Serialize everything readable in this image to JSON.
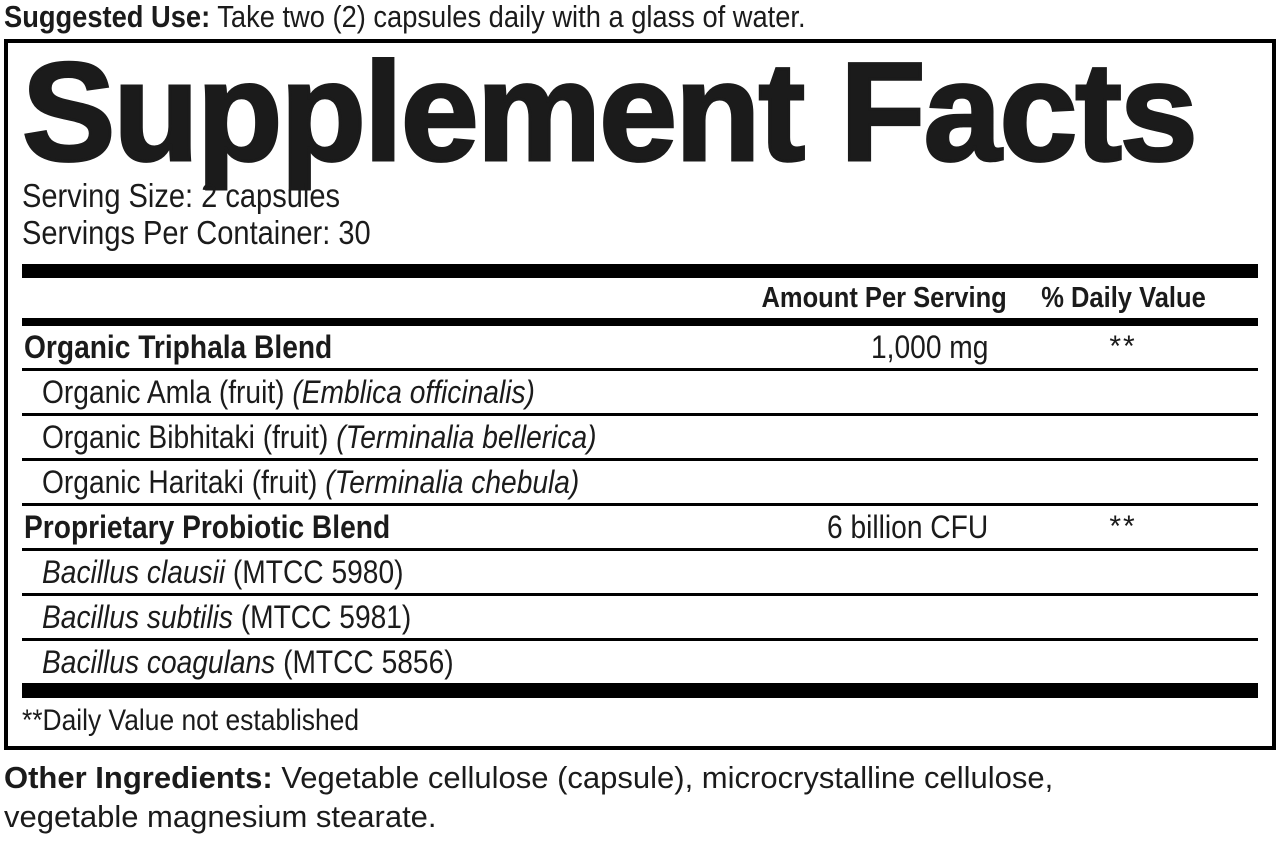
{
  "suggested_use": {
    "label": "Suggested Use:",
    "text": "Take two (2) capsules daily with a glass of water."
  },
  "panel": {
    "title": "Supplement Facts",
    "serving_size": "Serving Size: 2 capsules",
    "servings_per_container": "Servings Per Container: 30",
    "columns": {
      "amount": "Amount Per Serving",
      "daily_value": "% Daily Value"
    },
    "rows": [
      {
        "segments": [
          {
            "text": "Organic Triphala Blend",
            "style": "bold"
          }
        ],
        "amount": "1,000 mg",
        "daily_value": "**",
        "indent": false
      },
      {
        "segments": [
          {
            "text": "Organic Amla (fruit) ",
            "style": "regular"
          },
          {
            "text": "(Emblica officinalis)",
            "style": "italic"
          }
        ],
        "amount": "",
        "daily_value": "",
        "indent": true
      },
      {
        "segments": [
          {
            "text": "Organic Bibhitaki (fruit) ",
            "style": "regular"
          },
          {
            "text": "(Terminalia bellerica)",
            "style": "italic"
          }
        ],
        "amount": "",
        "daily_value": "",
        "indent": true
      },
      {
        "segments": [
          {
            "text": "Organic Haritaki (fruit) ",
            "style": "regular"
          },
          {
            "text": "(Terminalia chebula)",
            "style": "italic"
          }
        ],
        "amount": "",
        "daily_value": "",
        "indent": true
      },
      {
        "segments": [
          {
            "text": "Proprietary Probiotic Blend",
            "style": "bold"
          }
        ],
        "amount": "6 billion CFU",
        "daily_value": "**",
        "indent": false
      },
      {
        "segments": [
          {
            "text": "Bacillus clausii",
            "style": "italic"
          },
          {
            "text": " (MTCC 5980)",
            "style": "regular"
          }
        ],
        "amount": "",
        "daily_value": "",
        "indent": true
      },
      {
        "segments": [
          {
            "text": "Bacillus subtilis",
            "style": "italic"
          },
          {
            "text": " (MTCC 5981)",
            "style": "regular"
          }
        ],
        "amount": "",
        "daily_value": "",
        "indent": true
      },
      {
        "segments": [
          {
            "text": "Bacillus coagulans",
            "style": "italic"
          },
          {
            "text": " (MTCC 5856)",
            "style": "regular"
          }
        ],
        "amount": "",
        "daily_value": "",
        "indent": true
      }
    ],
    "footnote": "**Daily Value not established"
  },
  "other_ingredients": {
    "label": "Other Ingredients:",
    "text": "Vegetable cellulose (capsule), microcrystalline cellulose, vegetable magnesium stearate."
  },
  "colors": {
    "text": "#1b1b1b",
    "rule": "#000000",
    "background": "#ffffff"
  }
}
